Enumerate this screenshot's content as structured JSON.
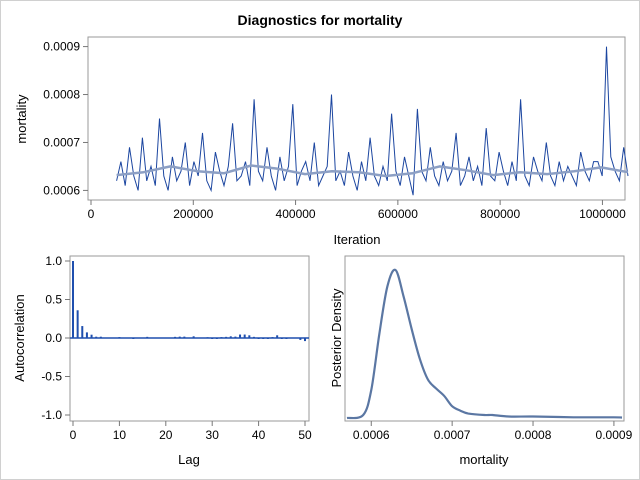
{
  "title": "Diagnostics for mortality",
  "colors": {
    "trace": "#1c46a0",
    "smooth": "#8c9fc4",
    "bars": "#1f4fae",
    "density": "#5b77a3",
    "frame": "#9a9a9a"
  },
  "chart_data": [
    {
      "type": "line",
      "name": "trace",
      "xlabel": "Iteration",
      "ylabel": "mortality",
      "xlim": [
        0,
        1050000
      ],
      "ylim": [
        0.00058,
        0.00092
      ],
      "xticks": [
        "0",
        "200000",
        "400000",
        "600000",
        "800000",
        "1000000"
      ],
      "yticks": [
        "0.0006",
        "0.0007",
        "0.0008",
        "0.0009"
      ],
      "x_range": [
        50000,
        1050000
      ],
      "values": [
        0.00062,
        0.00066,
        0.00061,
        0.00069,
        0.00063,
        0.0006,
        0.00071,
        0.00062,
        0.00065,
        0.00061,
        0.00075,
        0.00063,
        0.0006,
        0.00067,
        0.00062,
        0.00064,
        0.0007,
        0.00061,
        0.00066,
        0.00063,
        0.00072,
        0.00062,
        0.0006,
        0.00068,
        0.00064,
        0.00061,
        0.00065,
        0.00074,
        0.00062,
        0.00063,
        0.00066,
        0.00061,
        0.00079,
        0.00064,
        0.00062,
        0.00069,
        0.00063,
        0.0006,
        0.00067,
        0.00062,
        0.00065,
        0.00078,
        0.00061,
        0.00064,
        0.00066,
        0.00062,
        0.0007,
        0.00061,
        0.00063,
        0.00065,
        0.0008,
        0.00062,
        0.00064,
        0.00061,
        0.00068,
        0.00063,
        0.0006,
        0.00066,
        0.00062,
        0.00071,
        0.00063,
        0.00061,
        0.00065,
        0.00062,
        0.00076,
        0.00064,
        0.00061,
        0.00067,
        0.00063,
        0.00059,
        0.00077,
        0.00064,
        0.00062,
        0.00069,
        0.00063,
        0.00061,
        0.00066,
        0.00062,
        0.00064,
        0.00072,
        0.00061,
        0.00063,
        0.00067,
        0.00062,
        0.00065,
        0.00061,
        0.00073,
        0.00063,
        0.00062,
        0.00068,
        0.00064,
        0.00061,
        0.00066,
        0.00062,
        0.00079,
        0.00063,
        0.00061,
        0.00067,
        0.00064,
        0.00062,
        0.0007,
        0.00063,
        0.00061,
        0.00066,
        0.00062,
        0.00065,
        0.00063,
        0.00061,
        0.00068,
        0.00064,
        0.00062,
        0.00066,
        0.00066,
        0.00063,
        0.0009,
        0.00067,
        0.00064,
        0.00062,
        0.00069,
        0.00063
      ],
      "smooth": [
        0.000632,
        0.000638,
        0.00065,
        0.00064,
        0.000636,
        0.000652,
        0.000645,
        0.000634,
        0.00064,
        0.000638,
        0.00063,
        0.000636,
        0.00065,
        0.000642,
        0.000632,
        0.000638,
        0.000634,
        0.00064,
        0.000648,
        0.000638
      ]
    },
    {
      "type": "bar",
      "name": "autocorrelation",
      "xlabel": "Lag",
      "ylabel": "Autocorrelation",
      "xlim": [
        0,
        50
      ],
      "ylim": [
        -1.0,
        1.0
      ],
      "xticks": [
        "0",
        "10",
        "20",
        "30",
        "40",
        "50"
      ],
      "yticks": [
        "1.0",
        "0.5",
        "0.0",
        "-0.5",
        "-1.0"
      ],
      "values": [
        1.0,
        0.36,
        0.155,
        0.073,
        0.043,
        0.017,
        0.017,
        0,
        0,
        0,
        0.012,
        0,
        0,
        -0.01,
        0,
        0,
        0.015,
        0,
        0,
        0,
        0,
        0,
        0.015,
        0.018,
        0.018,
        0,
        0.022,
        0,
        0,
        0.01,
        -0.012,
        -0.01,
        0.012,
        0.015,
        0.022,
        0.018,
        0.045,
        0.045,
        0.035,
        0.015,
        -0.01,
        -0.01,
        -0.012,
        0.012,
        0.035,
        -0.01,
        -0.01,
        0,
        0,
        -0.025,
        -0.04
      ]
    },
    {
      "type": "line",
      "name": "density",
      "xlabel": "mortality",
      "ylabel": "Posterior Density",
      "xlim": [
        0.00057,
        0.00091
      ],
      "xticks": [
        "0.0006",
        "0.0007",
        "0.0008",
        "0.0009"
      ],
      "x": [
        0.00057,
        0.00059,
        0.0006,
        0.00061,
        0.00062,
        0.00063,
        0.00064,
        0.00065,
        0.00066,
        0.00067,
        0.00068,
        0.00069,
        0.0007,
        0.00071,
        0.00072,
        0.00074,
        0.00075,
        0.00077,
        0.0008,
        0.00085,
        0.0009,
        0.00091
      ],
      "y": [
        0,
        0.02,
        0.19,
        0.57,
        0.89,
        1.0,
        0.82,
        0.6,
        0.4,
        0.26,
        0.2,
        0.15,
        0.08,
        0.05,
        0.03,
        0.02,
        0.02,
        0.01,
        0.01,
        0.005,
        0.005,
        0.003
      ]
    }
  ]
}
